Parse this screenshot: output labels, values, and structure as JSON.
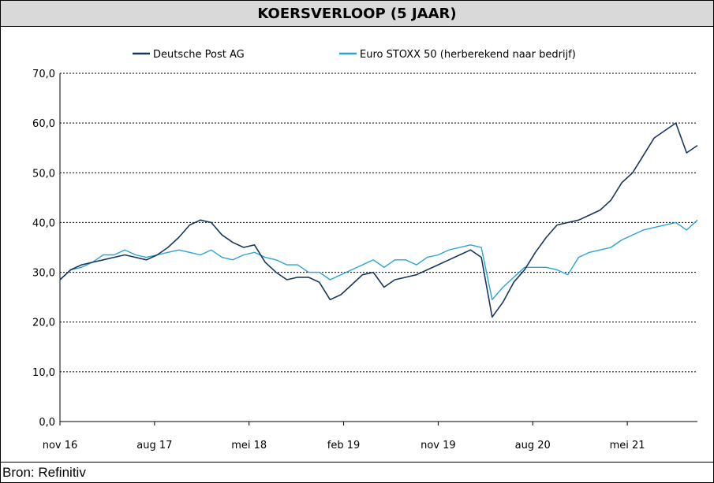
{
  "title": "KOERSVERLOOP (5 JAAR)",
  "source": "Bron: Refinitiv",
  "colors": {
    "dp": "#17375e",
    "stoxx": "#29a3d8",
    "grid": "#000000"
  },
  "chart_data": {
    "type": "line",
    "title": "KOERSVERLOOP (5 JAAR)",
    "xlabel": "",
    "ylabel": "",
    "x_range": [
      "2016-11",
      "2021-10"
    ],
    "ylim": [
      0,
      70
    ],
    "y_ticks": [
      "0,0",
      "10,0",
      "20,0",
      "30,0",
      "40,0",
      "50,0",
      "60,0",
      "70,0"
    ],
    "x_ticks": [
      "nov 16",
      "aug 17",
      "mei 18",
      "feb 19",
      "nov 19",
      "aug 20",
      "mei 21"
    ],
    "grid": "horizontal dotted",
    "legend": "top",
    "series": [
      {
        "name": "Deutsche Post AG",
        "color": "#17375e",
        "x": [
          "2016-11",
          "2016-12",
          "2017-01",
          "2017-02",
          "2017-03",
          "2017-04",
          "2017-05",
          "2017-06",
          "2017-07",
          "2017-08",
          "2017-09",
          "2017-10",
          "2017-11",
          "2017-12",
          "2018-01",
          "2018-02",
          "2018-03",
          "2018-04",
          "2018-05",
          "2018-06",
          "2018-07",
          "2018-08",
          "2018-09",
          "2018-10",
          "2018-11",
          "2018-12",
          "2019-01",
          "2019-02",
          "2019-03",
          "2019-04",
          "2019-05",
          "2019-06",
          "2019-07",
          "2019-08",
          "2019-09",
          "2019-10",
          "2019-11",
          "2019-12",
          "2020-01",
          "2020-02",
          "2020-03",
          "2020-04",
          "2020-05",
          "2020-06",
          "2020-07",
          "2020-08",
          "2020-09",
          "2020-10",
          "2020-11",
          "2020-12",
          "2021-01",
          "2021-02",
          "2021-03",
          "2021-04",
          "2021-05",
          "2021-06",
          "2021-07",
          "2021-08",
          "2021-09",
          "2021-10"
        ],
        "values": [
          28.5,
          30.5,
          31.5,
          32.0,
          32.5,
          33.0,
          33.5,
          33.0,
          32.5,
          33.5,
          35.0,
          37.0,
          39.5,
          40.5,
          40.0,
          37.5,
          36.0,
          35.0,
          35.5,
          32.0,
          30.0,
          28.5,
          29.0,
          29.0,
          28.0,
          24.5,
          25.5,
          27.5,
          29.5,
          30.0,
          27.0,
          28.5,
          29.0,
          29.5,
          30.5,
          31.5,
          32.5,
          33.5,
          34.5,
          33.0,
          21.0,
          24.0,
          28.0,
          30.5,
          34.0,
          37.0,
          39.5,
          40.0,
          40.5,
          41.5,
          42.5,
          44.5,
          48.0,
          50.0,
          53.5,
          57.0,
          58.5,
          60.0,
          54.0,
          55.5
        ]
      },
      {
        "name": "Euro STOXX 50 (herberekend naar bedrijf)",
        "color": "#29a3d8",
        "x": [
          "2016-11",
          "2016-12",
          "2017-01",
          "2017-02",
          "2017-03",
          "2017-04",
          "2017-05",
          "2017-06",
          "2017-07",
          "2017-08",
          "2017-09",
          "2017-10",
          "2017-11",
          "2017-12",
          "2018-01",
          "2018-02",
          "2018-03",
          "2018-04",
          "2018-05",
          "2018-06",
          "2018-07",
          "2018-08",
          "2018-09",
          "2018-10",
          "2018-11",
          "2018-12",
          "2019-01",
          "2019-02",
          "2019-03",
          "2019-04",
          "2019-05",
          "2019-06",
          "2019-07",
          "2019-08",
          "2019-09",
          "2019-10",
          "2019-11",
          "2019-12",
          "2020-01",
          "2020-02",
          "2020-03",
          "2020-04",
          "2020-05",
          "2020-06",
          "2020-07",
          "2020-08",
          "2020-09",
          "2020-10",
          "2020-11",
          "2020-12",
          "2021-01",
          "2021-02",
          "2021-03",
          "2021-04",
          "2021-05",
          "2021-06",
          "2021-07",
          "2021-08",
          "2021-09",
          "2021-10"
        ],
        "values": [
          28.5,
          30.5,
          31.0,
          32.0,
          33.5,
          33.5,
          34.5,
          33.5,
          33.0,
          33.5,
          34.0,
          34.5,
          34.0,
          33.5,
          34.5,
          33.0,
          32.5,
          33.5,
          34.0,
          33.0,
          32.5,
          31.5,
          31.5,
          30.0,
          30.0,
          28.5,
          29.5,
          30.5,
          31.5,
          32.5,
          31.0,
          32.5,
          32.5,
          31.5,
          33.0,
          33.5,
          34.5,
          35.0,
          35.5,
          35.0,
          24.5,
          27.0,
          29.0,
          31.0,
          31.0,
          31.0,
          30.5,
          29.5,
          33.0,
          34.0,
          34.5,
          35.0,
          36.5,
          37.5,
          38.5,
          39.0,
          39.5,
          40.0,
          38.5,
          40.5
        ]
      }
    ]
  }
}
